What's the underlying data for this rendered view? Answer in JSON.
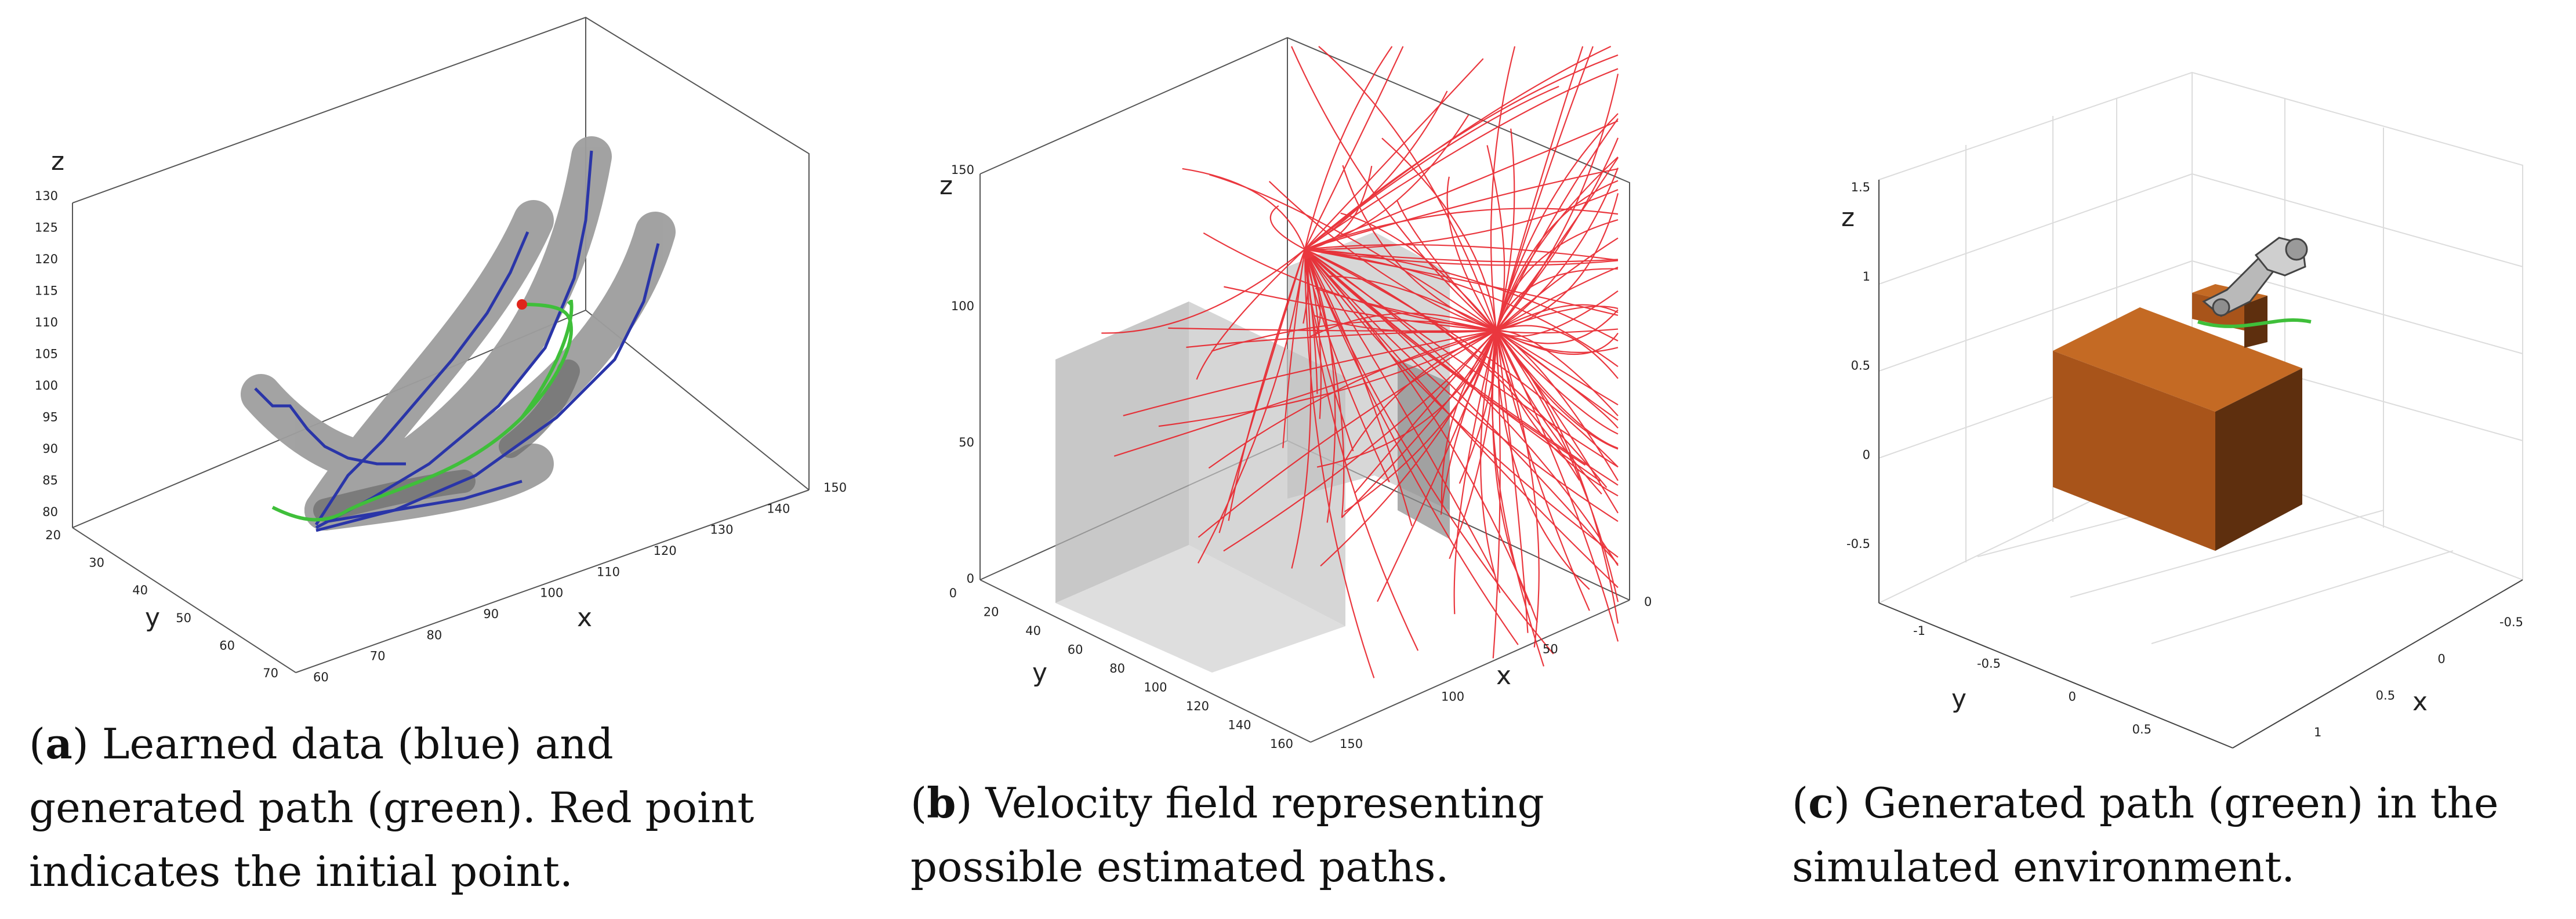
{
  "panels": [
    {
      "id": "a",
      "axes": {
        "x": "x",
        "y": "y",
        "z": "z"
      },
      "x_ticks": [
        "60",
        "70",
        "80",
        "90",
        "100",
        "110",
        "120",
        "130",
        "140",
        "150"
      ],
      "y_ticks": [
        "20",
        "30",
        "40",
        "50",
        "60",
        "70"
      ],
      "z_ticks": [
        "80",
        "85",
        "90",
        "95",
        "100",
        "105",
        "110",
        "115",
        "120",
        "125",
        "130"
      ],
      "caption_letter": "a",
      "caption_text": " Learned data (blue) and generated path (green). Red point indicates the initial point."
    },
    {
      "id": "b",
      "axes": {
        "x": "x",
        "y": "y",
        "z": "z"
      },
      "x_ticks": [
        "0",
        "50",
        "100",
        "150"
      ],
      "y_ticks": [
        "0",
        "20",
        "40",
        "60",
        "80",
        "100",
        "120",
        "140",
        "160"
      ],
      "z_ticks": [
        "0",
        "50",
        "100",
        "150"
      ],
      "caption_letter": "b",
      "caption_text": " Velocity field representing possible estimated paths."
    },
    {
      "id": "c",
      "axes": {
        "x": "x",
        "y": "y",
        "z": "z"
      },
      "x_ticks": [
        "-0.5",
        "0",
        "0.5",
        "1"
      ],
      "y_ticks": [
        "-1",
        "-0.5",
        "0",
        "0.5"
      ],
      "z_ticks": [
        "-0.5",
        "0",
        "0.5",
        "1",
        "1.5"
      ],
      "caption_letter": "c",
      "caption_text": " Generated path (green) in the simulated environment."
    }
  ],
  "colors": {
    "learned": "#2a35a8",
    "generated": "#3fbf3a",
    "initial_point": "#e0251b",
    "field": "#e8222a",
    "tube": "#9e9e9e",
    "box_face": "#c46a24"
  }
}
